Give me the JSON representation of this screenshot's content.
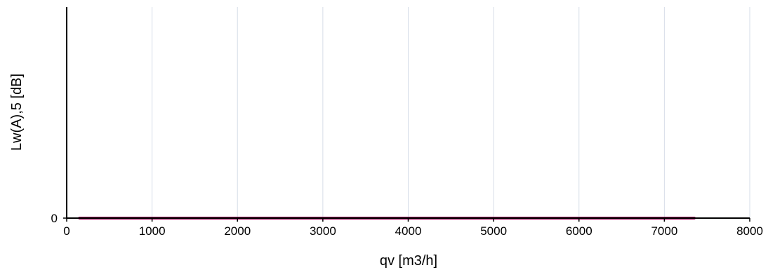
{
  "chart_data": {
    "type": "line",
    "title": "",
    "xlabel": "qv [m3/h]",
    "ylabel": "Lw(A),5 [dB]",
    "xlim": [
      0,
      8000
    ],
    "ylim": [
      0,
      1
    ],
    "x_ticks": [
      "0",
      "1000",
      "2000",
      "3000",
      "4000",
      "5000",
      "6000",
      "7000",
      "8000"
    ],
    "y_ticks": [
      "0"
    ],
    "grid": "vertical",
    "series": [
      {
        "x": [
          150,
          7350
        ],
        "y": [
          0,
          0
        ],
        "color": "#a0005a"
      }
    ]
  }
}
